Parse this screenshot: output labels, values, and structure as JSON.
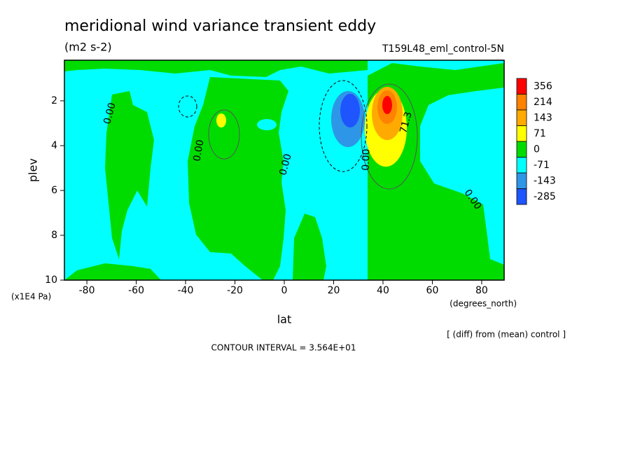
{
  "chart_data": {
    "type": "contour",
    "title": "meridional wind variance transient eddy",
    "units": "(m2 s-2)",
    "subtitle": "T159L48_eml_control-5N",
    "x_label": "lat",
    "x_units": "(degrees_north)",
    "y_label": "plev",
    "y_units": "(x1E4 Pa)",
    "note": "[ (diff) from (mean) control ]",
    "contour_interval": "CONTOUR INTERVAL = 3.564E+01",
    "contour_labels": [
      "0.00",
      "71.3"
    ],
    "xlim": [
      -89.1,
      89.1
    ],
    "xticks": [
      -80,
      -60,
      -40,
      -20,
      0,
      20,
      40,
      60,
      80
    ],
    "ylim": [
      10,
      0.19
    ],
    "yticks": [
      2,
      4,
      6,
      8,
      10
    ],
    "levels": [
      356,
      214,
      143,
      71,
      0,
      -71,
      -143,
      -285
    ],
    "colors": [
      "#ff0000",
      "#ff8200",
      "#ffaa00",
      "#ffff00",
      "#00dc00",
      "#00ffff",
      "#2e96e6",
      "#1e55ff"
    ]
  }
}
